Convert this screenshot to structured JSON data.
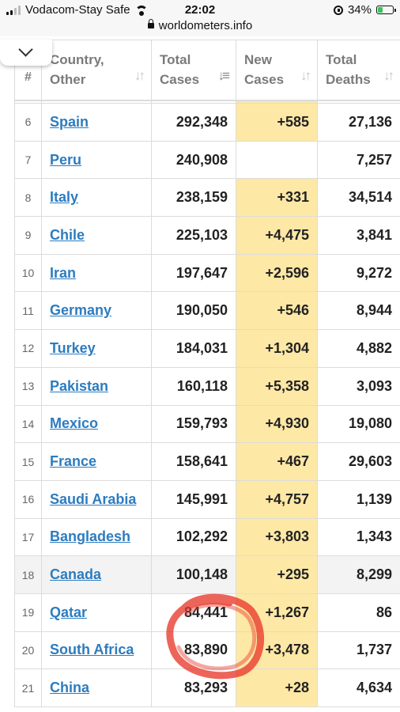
{
  "status_bar": {
    "carrier": "Vodacom-Stay Safe",
    "time": "22:02",
    "battery": "34%",
    "battery_level": 0.34,
    "icons": [
      "signal-icon",
      "wifi-icon",
      "orientation-lock-icon",
      "battery-icon"
    ]
  },
  "url_bar": {
    "url": "worldometers.info"
  },
  "table": {
    "headers": {
      "num": "#",
      "country": "Country, Other",
      "total_cases": "Total Cases",
      "new_cases": "New Cases",
      "total_deaths": "Total Deaths"
    },
    "rows": [
      {
        "num": "6",
        "country": "Spain",
        "total_cases": "292,348",
        "new_cases": "+585",
        "total_deaths": "27,136"
      },
      {
        "num": "7",
        "country": "Peru",
        "total_cases": "240,908",
        "new_cases": "",
        "total_deaths": "7,257"
      },
      {
        "num": "8",
        "country": "Italy",
        "total_cases": "238,159",
        "new_cases": "+331",
        "total_deaths": "34,514"
      },
      {
        "num": "9",
        "country": "Chile",
        "total_cases": "225,103",
        "new_cases": "+4,475",
        "total_deaths": "3,841"
      },
      {
        "num": "10",
        "country": "Iran",
        "total_cases": "197,647",
        "new_cases": "+2,596",
        "total_deaths": "9,272"
      },
      {
        "num": "11",
        "country": "Germany",
        "total_cases": "190,050",
        "new_cases": "+546",
        "total_deaths": "8,944"
      },
      {
        "num": "12",
        "country": "Turkey",
        "total_cases": "184,031",
        "new_cases": "+1,304",
        "total_deaths": "4,882"
      },
      {
        "num": "13",
        "country": "Pakistan",
        "total_cases": "160,118",
        "new_cases": "+5,358",
        "total_deaths": "3,093"
      },
      {
        "num": "14",
        "country": "Mexico",
        "total_cases": "159,793",
        "new_cases": "+4,930",
        "total_deaths": "19,080"
      },
      {
        "num": "15",
        "country": "France",
        "total_cases": "158,641",
        "new_cases": "+467",
        "total_deaths": "29,603"
      },
      {
        "num": "16",
        "country": "Saudi Arabia",
        "total_cases": "145,991",
        "new_cases": "+4,757",
        "total_deaths": "1,139"
      },
      {
        "num": "17",
        "country": "Bangladesh",
        "total_cases": "102,292",
        "new_cases": "+3,803",
        "total_deaths": "1,343"
      },
      {
        "num": "18",
        "country": "Canada",
        "total_cases": "100,148",
        "new_cases": "+295",
        "total_deaths": "8,299"
      },
      {
        "num": "19",
        "country": "Qatar",
        "total_cases": "84,441",
        "new_cases": "+1,267",
        "total_deaths": "86"
      },
      {
        "num": "20",
        "country": "South Africa",
        "total_cases": "83,890",
        "new_cases": "+3,478",
        "total_deaths": "1,737"
      },
      {
        "num": "21",
        "country": "China",
        "total_cases": "83,293",
        "new_cases": "+28",
        "total_deaths": "4,634"
      }
    ]
  },
  "colors": {
    "link": "#2c7cbf",
    "new_cases_highlight": "#fde8a6",
    "annotation_red": "#e8392c"
  }
}
